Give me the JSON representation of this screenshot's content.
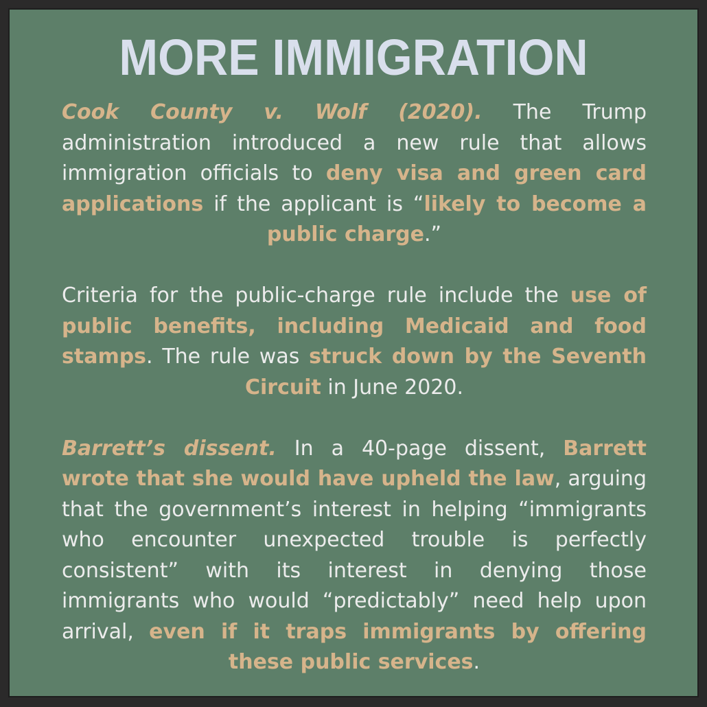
{
  "title": "MORE IMMIGRATION",
  "paragraphs": [
    {
      "segments": [
        {
          "text": "Cook County v. Wolf (2020).",
          "style": "heading"
        },
        {
          "text": " The Trump administration introduced a new rule that allows immigration officials to ",
          "style": "plain"
        },
        {
          "text": "deny visa and green card applications",
          "style": "highlight"
        },
        {
          "text": " if the applicant is “",
          "style": "plain"
        },
        {
          "text": "likely to become a public charge",
          "style": "highlight"
        },
        {
          "text": ".”",
          "style": "plain"
        }
      ]
    },
    {
      "segments": [
        {
          "text": "Criteria for the public-charge rule include the ",
          "style": "plain"
        },
        {
          "text": "use of public benefits, including Medicaid and food stamps",
          "style": "highlight"
        },
        {
          "text": ". The rule was ",
          "style": "plain"
        },
        {
          "text": "struck down by the Seventh Circuit",
          "style": "highlight"
        },
        {
          "text": " in June 2020.",
          "style": "plain"
        }
      ]
    },
    {
      "segments": [
        {
          "text": "Barrett’s dissent.",
          "style": "heading"
        },
        {
          "text": " In a 40-page dissent, ",
          "style": "plain"
        },
        {
          "text": "Barrett wrote that she would have upheld the law",
          "style": "highlight"
        },
        {
          "text": ", arguing that the government’s interest in helping “immigrants who encounter unexpected trouble is perfectly consistent” with its interest in denying those immigrants who would “predictably” need help upon arrival, ",
          "style": "plain"
        },
        {
          "text": "even if it traps immigrants by offering these public services",
          "style": "highlight"
        },
        {
          "text": ".",
          "style": "plain"
        }
      ]
    }
  ],
  "colors": {
    "background": "#5d7f69",
    "frame": "#2b2a2a",
    "title": "#d9dfec",
    "body_text": "#ececec",
    "highlight": "#d6b48b"
  }
}
